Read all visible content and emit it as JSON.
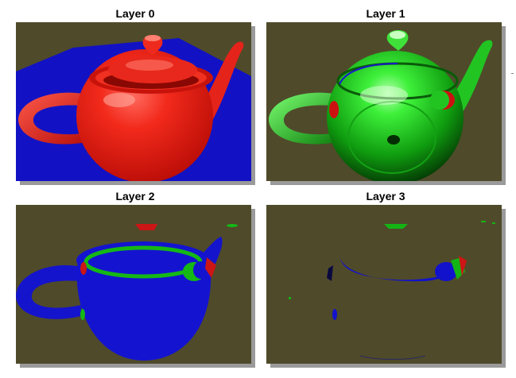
{
  "figure": {
    "background_color": "#4f4a2a",
    "panels": [
      {
        "title": "Layer 0",
        "content": "red teapot on blue floor plane",
        "colors": {
          "teapot": "#e01810",
          "floor": "#1010c8"
        }
      },
      {
        "title": "Layer 1",
        "content": "green teapot layer",
        "colors": {
          "teapot": "#19c419",
          "accent": "#cc1111"
        }
      },
      {
        "title": "Layer 2",
        "content": "blue teapot layer with green and red fragments",
        "colors": {
          "teapot": "#1010d0",
          "accent": "#18b818",
          "red": "#cc1515"
        }
      },
      {
        "title": "Layer 3",
        "content": "sparse fragments layer",
        "colors": {
          "blue": "#1212cc",
          "green": "#14b414",
          "red": "#cc1515"
        }
      }
    ]
  }
}
